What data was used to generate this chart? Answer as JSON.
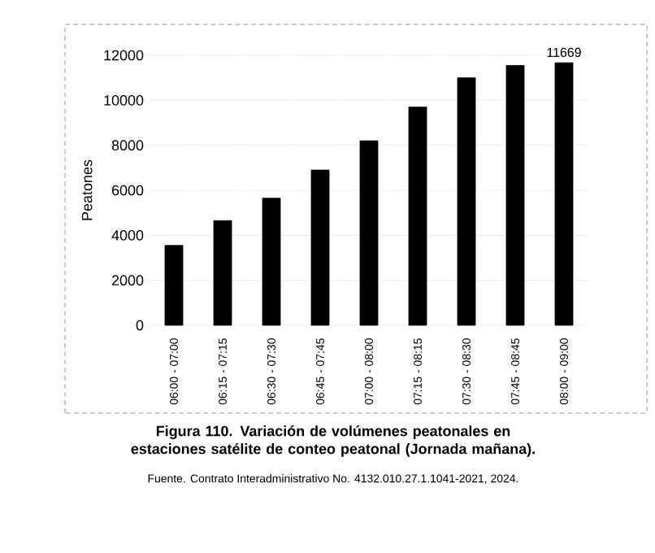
{
  "chart_data": {
    "type": "bar",
    "title": "Figura 110. Variación de volúmenes peatonales en estaciones satélite de conteo peatonal (Jornada mañana).",
    "annotations": [
      "Fuente. Contrato Interadministrativo No. 4132.010.27.1.1041-2021, 2024."
    ],
    "ylabel": "Peatones",
    "categories": [
      "06:00 - 07:00",
      "06:15 - 07:15",
      "06:30 - 07:30",
      "06:45 - 07:45",
      "07:00 - 08:00",
      "07:15 - 08:15",
      "07:30 - 08:30",
      "07:45 - 08:45",
      "08:00 - 09:00"
    ],
    "values": [
      3550,
      4650,
      5650,
      6900,
      8200,
      9700,
      11000,
      11550,
      11669
    ],
    "value_labels": [
      null,
      null,
      null,
      null,
      null,
      null,
      null,
      null,
      "11669"
    ],
    "color": "#000000",
    "ylim": [
      0,
      12000
    ],
    "yticks": [
      0,
      2000,
      4000,
      6000,
      8000,
      10000,
      12000
    ],
    "grid": "y"
  }
}
